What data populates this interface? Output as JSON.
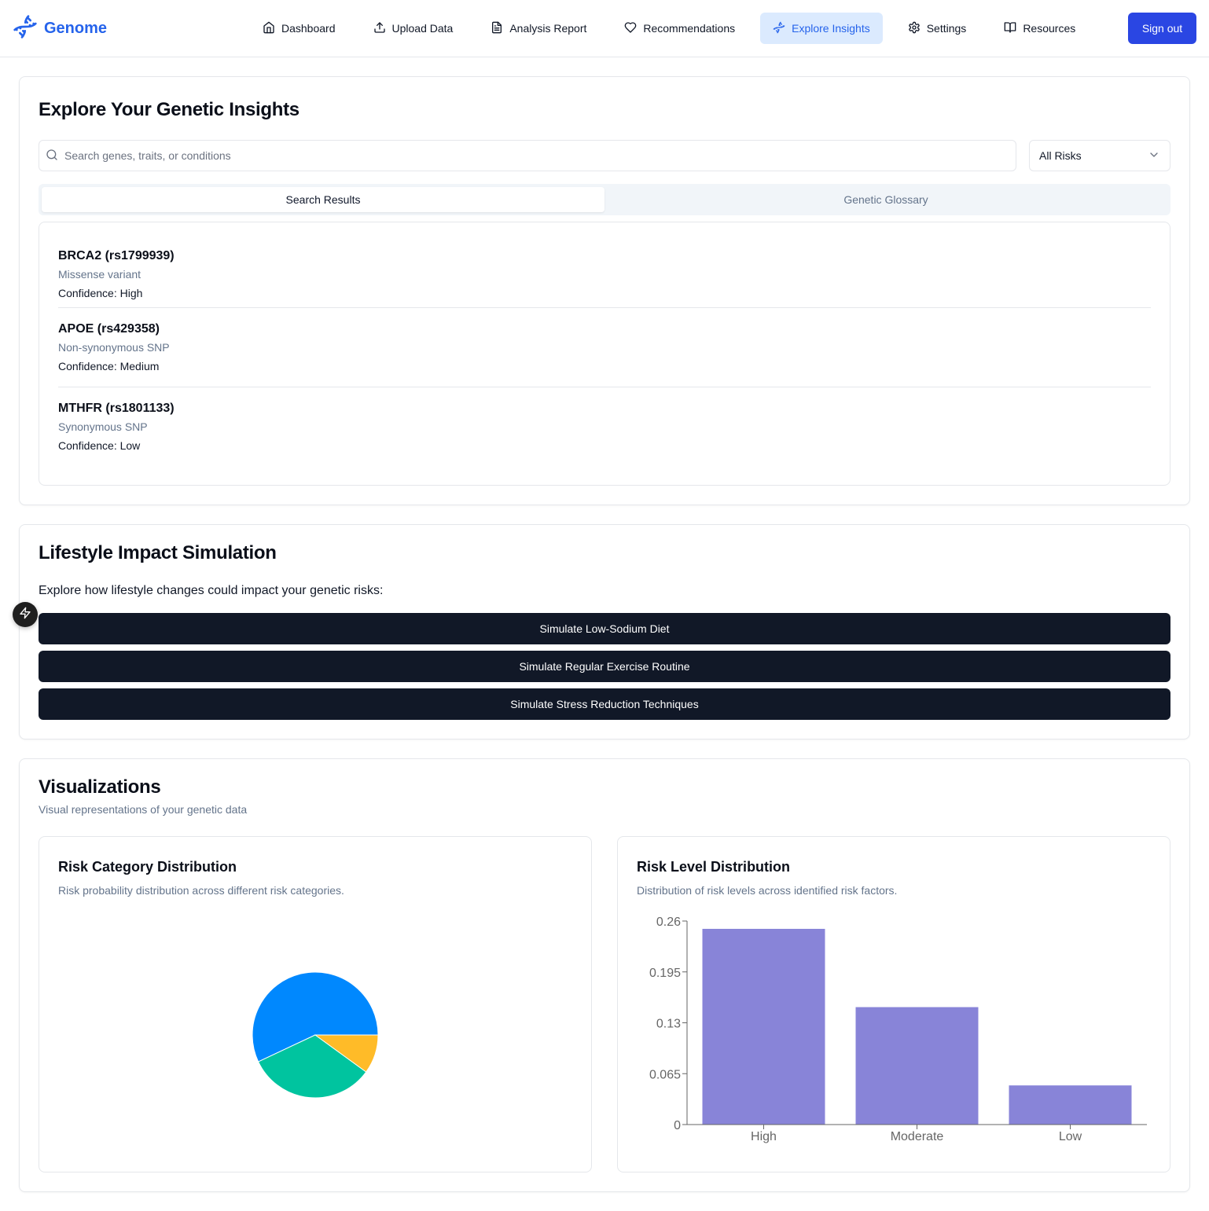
{
  "app": {
    "name": "Genome",
    "logo_icon": "dna-icon",
    "brand_color": "#2563eb"
  },
  "nav": {
    "items": [
      {
        "label": "Dashboard",
        "icon": "home-icon"
      },
      {
        "label": "Upload Data",
        "icon": "upload-icon"
      },
      {
        "label": "Analysis Report",
        "icon": "file-text-icon"
      },
      {
        "label": "Recommendations",
        "icon": "heart-icon"
      },
      {
        "label": "Explore Insights",
        "icon": "dna-icon",
        "active": true
      },
      {
        "label": "Settings",
        "icon": "gear-icon"
      },
      {
        "label": "Resources",
        "icon": "book-open-icon"
      }
    ],
    "signout_label": "Sign out"
  },
  "explore": {
    "title": "Explore Your Genetic Insights",
    "search_placeholder": "Search genes, traits, or conditions",
    "search_value": "",
    "risk_filter": "All Risks",
    "tabs": [
      "Search Results",
      "Genetic Glossary"
    ],
    "active_tab": 0,
    "results": [
      {
        "name": "BRCA2 (rs1799939)",
        "type": "Missense variant",
        "confidence": "Confidence: High"
      },
      {
        "name": "APOE (rs429358)",
        "type": "Non-synonymous SNP",
        "confidence": "Confidence: Medium"
      },
      {
        "name": "MTHFR (rs1801133)",
        "type": "Synonymous SNP",
        "confidence": "Confidence: Low"
      }
    ]
  },
  "lifestyle": {
    "title": "Lifestyle Impact Simulation",
    "intro": "Explore how lifestyle changes could impact your genetic risks:",
    "buttons": [
      "Simulate Low-Sodium Diet",
      "Simulate Regular Exercise Routine",
      "Simulate Stress Reduction Techniques"
    ]
  },
  "visualizations": {
    "title": "Visualizations",
    "subtitle": "Visual representations of your genetic data"
  },
  "chart_data": [
    {
      "type": "pie",
      "title": "Risk Category Distribution",
      "subtitle": "Risk probability distribution across different risk categories.",
      "slices": [
        {
          "value": 0.57,
          "color": "#0088fe"
        },
        {
          "value": 0.33,
          "color": "#00c49f"
        },
        {
          "value": 0.1,
          "color": "#ffbb28"
        }
      ]
    },
    {
      "type": "bar",
      "title": "Risk Level Distribution",
      "subtitle": "Distribution of risk levels across identified risk factors.",
      "categories": [
        "High",
        "Moderate",
        "Low"
      ],
      "values": [
        0.25,
        0.15,
        0.05
      ],
      "ylim": [
        0,
        0.26
      ],
      "yticks": [
        "0",
        "0.065",
        "0.13",
        "0.195",
        "0.26"
      ],
      "bar_color": "#8884d8",
      "xlabel": "",
      "ylabel": ""
    }
  ]
}
